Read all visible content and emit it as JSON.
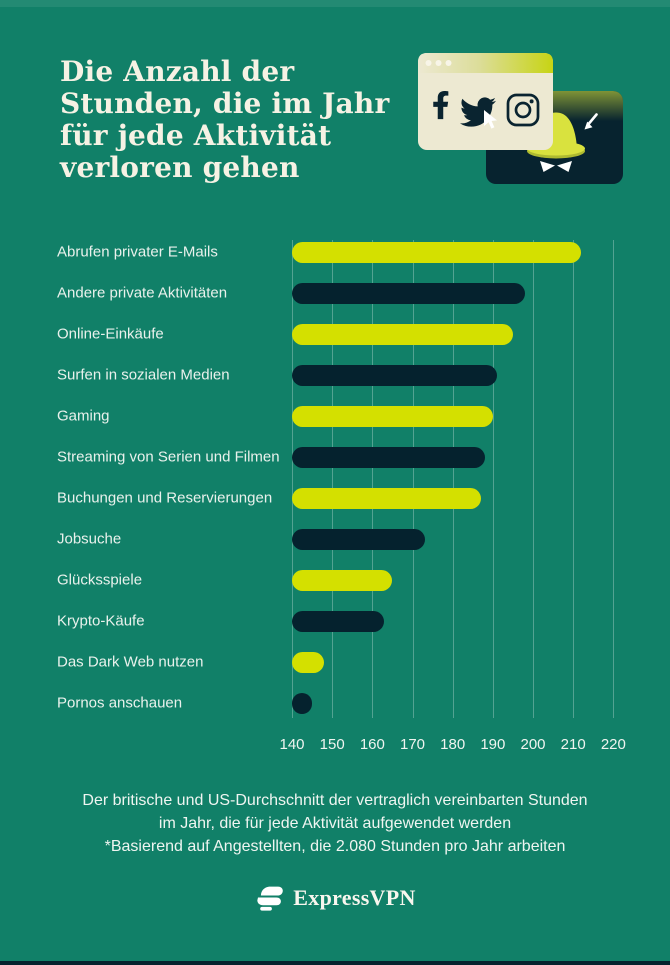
{
  "header": {
    "title_lines": [
      "Die Anzahl der",
      "Stunden, die im Jahr",
      "für jede Aktivität",
      "verloren gehen"
    ]
  },
  "illustration": {
    "icons": [
      "browser-window",
      "facebook-icon",
      "twitter-icon",
      "instagram-icon",
      "cursor-icon",
      "spy-hat-icon"
    ]
  },
  "chart_data": {
    "type": "bar",
    "orientation": "horizontal",
    "title": "",
    "xlabel": "",
    "ylabel": "",
    "categories": [
      "Abrufen privater E-Mails",
      "Andere private Aktivitäten",
      "Online-Einkäufe",
      "Surfen in sozialen Medien",
      "Gaming",
      "Streaming von Serien und Filmen",
      "Buchungen und Reservierungen",
      "Jobsuche",
      "Glücksspiele",
      "Krypto-Käufe",
      "Das Dark Web nutzen",
      "Pornos anschauen"
    ],
    "values": [
      212,
      198,
      195,
      191,
      190,
      188,
      187,
      173,
      165,
      163,
      148,
      145
    ],
    "x_ticks": [
      140,
      150,
      160,
      170,
      180,
      190,
      200,
      210,
      220
    ],
    "xlim": [
      140,
      220
    ],
    "grid": true,
    "bar_color_odd_rows": "#D4E000",
    "bar_color_even_rows": "#05222E",
    "units": "Stunden pro Jahr"
  },
  "footer": {
    "caption_lines": [
      "Der britische und US-Durchschnitt der vertraglich vereinbarten Stunden",
      "im Jahr, die für jede Aktivität aufgewendet werden",
      "*Basierend auf Angestellten, die 2.080 Stunden pro Jahr arbeiten"
    ],
    "brand": "ExpressVPN"
  },
  "colors": {
    "background": "#118068",
    "lime": "#D4E000",
    "navy": "#05222E",
    "cream": "#EDE9D2",
    "text": "#E9F1EC"
  }
}
